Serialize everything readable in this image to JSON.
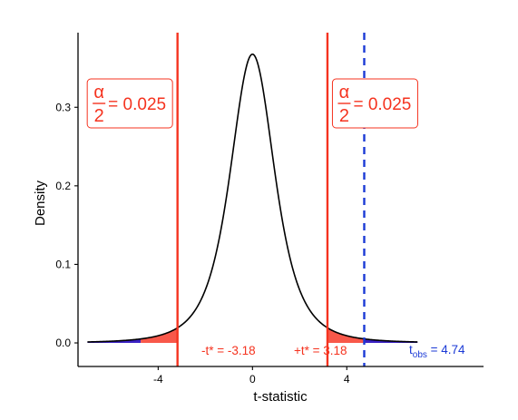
{
  "chart_data": {
    "type": "area",
    "xlabel": "t-statistic",
    "ylabel": "Density",
    "xlim": [
      -7.4,
      9.8
    ],
    "ylim": [
      -0.03,
      0.395
    ],
    "x_ticks": [
      -4,
      0,
      4
    ],
    "x_tick_labels": [
      "-4",
      "0",
      "4"
    ],
    "y_ticks": [
      0.0,
      0.1,
      0.2,
      0.3
    ],
    "y_tick_labels": [
      "0.0",
      "0.1",
      "0.2",
      "0.3"
    ],
    "grid": false,
    "distribution": {
      "name": "t",
      "df": 3,
      "x_range": [
        -7,
        7
      ]
    },
    "critical_values": {
      "lower": -3.18,
      "upper": 3.18
    },
    "observed": {
      "t": 4.74
    },
    "shaded_regions": [
      {
        "from": -7,
        "to": -4.74,
        "fill": "#3b22c4"
      },
      {
        "from": -4.74,
        "to": -3.18,
        "fill": "#f8584a"
      },
      {
        "from": 3.18,
        "to": 4.74,
        "fill": "#f8584a"
      },
      {
        "from": 4.74,
        "to": 7,
        "fill": "#3b22c4"
      }
    ],
    "annotations": {
      "lower_crit_label": "-t* = -3.18",
      "upper_crit_label": "+t* = 3.18",
      "obs_label_main": "t",
      "obs_label_sub": "obs",
      "obs_label_value": " = 4.74",
      "alpha_symbol": "α",
      "alpha_denominator": "2",
      "alpha_value": "= 0.025",
      "alpha_box_centers_x": [
        -5.2,
        5.2
      ]
    },
    "colors": {
      "curve": "#000000",
      "critical": "#f5331f",
      "observed": "#1b3ad6",
      "tail_fill": "#f8584a",
      "extreme_fill": "#3b22c4"
    }
  }
}
